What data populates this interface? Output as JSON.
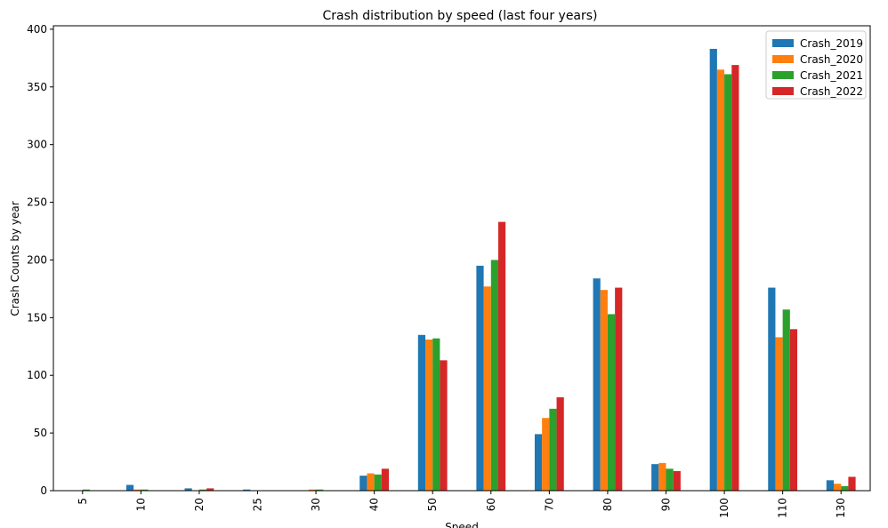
{
  "chart_data": {
    "type": "bar",
    "title": "Crash distribution by speed (last four years)",
    "xlabel": "Speed",
    "ylabel": "Crash Counts by year",
    "ylim": [
      0,
      403
    ],
    "yticks": [
      "0",
      "50",
      "100",
      "150",
      "200",
      "250",
      "300",
      "350",
      "400"
    ],
    "categories": [
      "5",
      "10",
      "20",
      "25",
      "30",
      "40",
      "50",
      "60",
      "70",
      "80",
      "90",
      "100",
      "110",
      "130"
    ],
    "legend_position": "top-right",
    "grid": false,
    "series": [
      {
        "name": "Crash_2019",
        "color": "#1f77b4",
        "values": [
          0,
          5,
          2,
          1,
          0,
          13,
          135,
          195,
          49,
          184,
          23,
          383,
          176,
          9
        ]
      },
      {
        "name": "Crash_2020",
        "color": "#ff7f0e",
        "values": [
          0,
          1,
          0,
          0,
          1,
          15,
          131,
          177,
          63,
          174,
          24,
          365,
          133,
          6
        ]
      },
      {
        "name": "Crash_2021",
        "color": "#2ca02c",
        "values": [
          1,
          1,
          1,
          0,
          1,
          14,
          132,
          200,
          71,
          153,
          19,
          361,
          157,
          4
        ]
      },
      {
        "name": "Crash_2022",
        "color": "#d62728",
        "values": [
          0,
          0,
          2,
          0,
          0,
          19,
          113,
          233,
          81,
          176,
          17,
          369,
          140,
          12
        ]
      }
    ]
  }
}
